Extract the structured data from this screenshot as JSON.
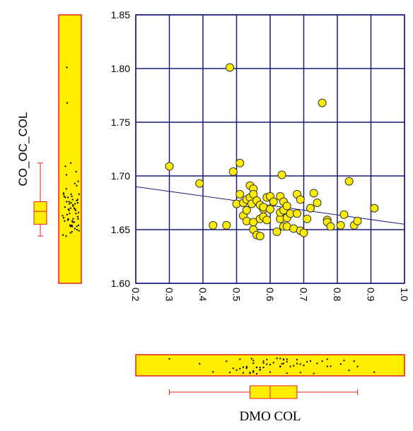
{
  "chart_data": {
    "type": "scatter",
    "xlabel": "DMO COL",
    "ylabel": "CO_OC_COL",
    "xlim": [
      0.2,
      1.0
    ],
    "ylim": [
      1.6,
      1.85
    ],
    "grid": true,
    "x_ticks": [
      "0.2",
      "0.3",
      "0.4",
      "0.5",
      "0.6",
      "0.7",
      "0.8",
      "0.9",
      "1.0"
    ],
    "y_ticks": [
      "1.60",
      "1.65",
      "1.70",
      "1.75",
      "1.80",
      "1.85"
    ],
    "trend_line": {
      "x": [
        0.2,
        1.0
      ],
      "y": [
        1.69,
        1.655
      ]
    },
    "points": [
      {
        "x": 0.3,
        "y": 1.709
      },
      {
        "x": 0.39,
        "y": 1.693
      },
      {
        "x": 0.43,
        "y": 1.654
      },
      {
        "x": 0.47,
        "y": 1.654
      },
      {
        "x": 0.48,
        "y": 1.801
      },
      {
        "x": 0.49,
        "y": 1.704
      },
      {
        "x": 0.5,
        "y": 1.674
      },
      {
        "x": 0.51,
        "y": 1.712
      },
      {
        "x": 0.51,
        "y": 1.683
      },
      {
        "x": 0.52,
        "y": 1.675
      },
      {
        "x": 0.52,
        "y": 1.663
      },
      {
        "x": 0.53,
        "y": 1.658
      },
      {
        "x": 0.53,
        "y": 1.678
      },
      {
        "x": 0.53,
        "y": 1.668
      },
      {
        "x": 0.54,
        "y": 1.691
      },
      {
        "x": 0.54,
        "y": 1.68
      },
      {
        "x": 0.545,
        "y": 1.674
      },
      {
        "x": 0.55,
        "y": 1.688
      },
      {
        "x": 0.55,
        "y": 1.683
      },
      {
        "x": 0.55,
        "y": 1.657
      },
      {
        "x": 0.55,
        "y": 1.65
      },
      {
        "x": 0.56,
        "y": 1.677
      },
      {
        "x": 0.56,
        "y": 1.645
      },
      {
        "x": 0.57,
        "y": 1.673
      },
      {
        "x": 0.57,
        "y": 1.66
      },
      {
        "x": 0.57,
        "y": 1.644
      },
      {
        "x": 0.58,
        "y": 1.669
      },
      {
        "x": 0.58,
        "y": 1.671
      },
      {
        "x": 0.58,
        "y": 1.662
      },
      {
        "x": 0.59,
        "y": 1.68
      },
      {
        "x": 0.59,
        "y": 1.659
      },
      {
        "x": 0.6,
        "y": 1.681
      },
      {
        "x": 0.6,
        "y": 1.669
      },
      {
        "x": 0.61,
        "y": 1.676
      },
      {
        "x": 0.62,
        "y": 1.648
      },
      {
        "x": 0.63,
        "y": 1.681
      },
      {
        "x": 0.63,
        "y": 1.66
      },
      {
        "x": 0.63,
        "y": 1.666
      },
      {
        "x": 0.635,
        "y": 1.701
      },
      {
        "x": 0.64,
        "y": 1.676
      },
      {
        "x": 0.64,
        "y": 1.668
      },
      {
        "x": 0.64,
        "y": 1.653
      },
      {
        "x": 0.65,
        "y": 1.672
      },
      {
        "x": 0.65,
        "y": 1.661
      },
      {
        "x": 0.65,
        "y": 1.653
      },
      {
        "x": 0.66,
        "y": 1.665
      },
      {
        "x": 0.67,
        "y": 1.651
      },
      {
        "x": 0.68,
        "y": 1.683
      },
      {
        "x": 0.68,
        "y": 1.665
      },
      {
        "x": 0.69,
        "y": 1.649
      },
      {
        "x": 0.69,
        "y": 1.678
      },
      {
        "x": 0.7,
        "y": 1.647
      },
      {
        "x": 0.71,
        "y": 1.66
      },
      {
        "x": 0.72,
        "y": 1.67
      },
      {
        "x": 0.73,
        "y": 1.684
      },
      {
        "x": 0.74,
        "y": 1.675
      },
      {
        "x": 0.755,
        "y": 1.768
      },
      {
        "x": 0.77,
        "y": 1.659
      },
      {
        "x": 0.77,
        "y": 1.657
      },
      {
        "x": 0.78,
        "y": 1.653
      },
      {
        "x": 0.81,
        "y": 1.654
      },
      {
        "x": 0.82,
        "y": 1.664
      },
      {
        "x": 0.835,
        "y": 1.695
      },
      {
        "x": 0.85,
        "y": 1.654
      },
      {
        "x": 0.86,
        "y": 1.658
      },
      {
        "x": 0.91,
        "y": 1.67
      }
    ],
    "y_boxplot": {
      "whisker_low": 1.644,
      "q1": 1.655,
      "median": 1.667,
      "q3": 1.676,
      "whisker_high": 1.712
    },
    "x_boxplot": {
      "whisker_low": 0.3,
      "q1": 0.54,
      "median": 0.6,
      "q3": 0.68,
      "whisker_high": 0.86
    },
    "colors": {
      "marker_fill": "#ffee00",
      "marker_stroke": "#333333",
      "grid": "#1a1a7a",
      "trend_line": "#1a1a7a",
      "box_outline": "#e02020",
      "strip_fill": "#ffee00"
    }
  }
}
